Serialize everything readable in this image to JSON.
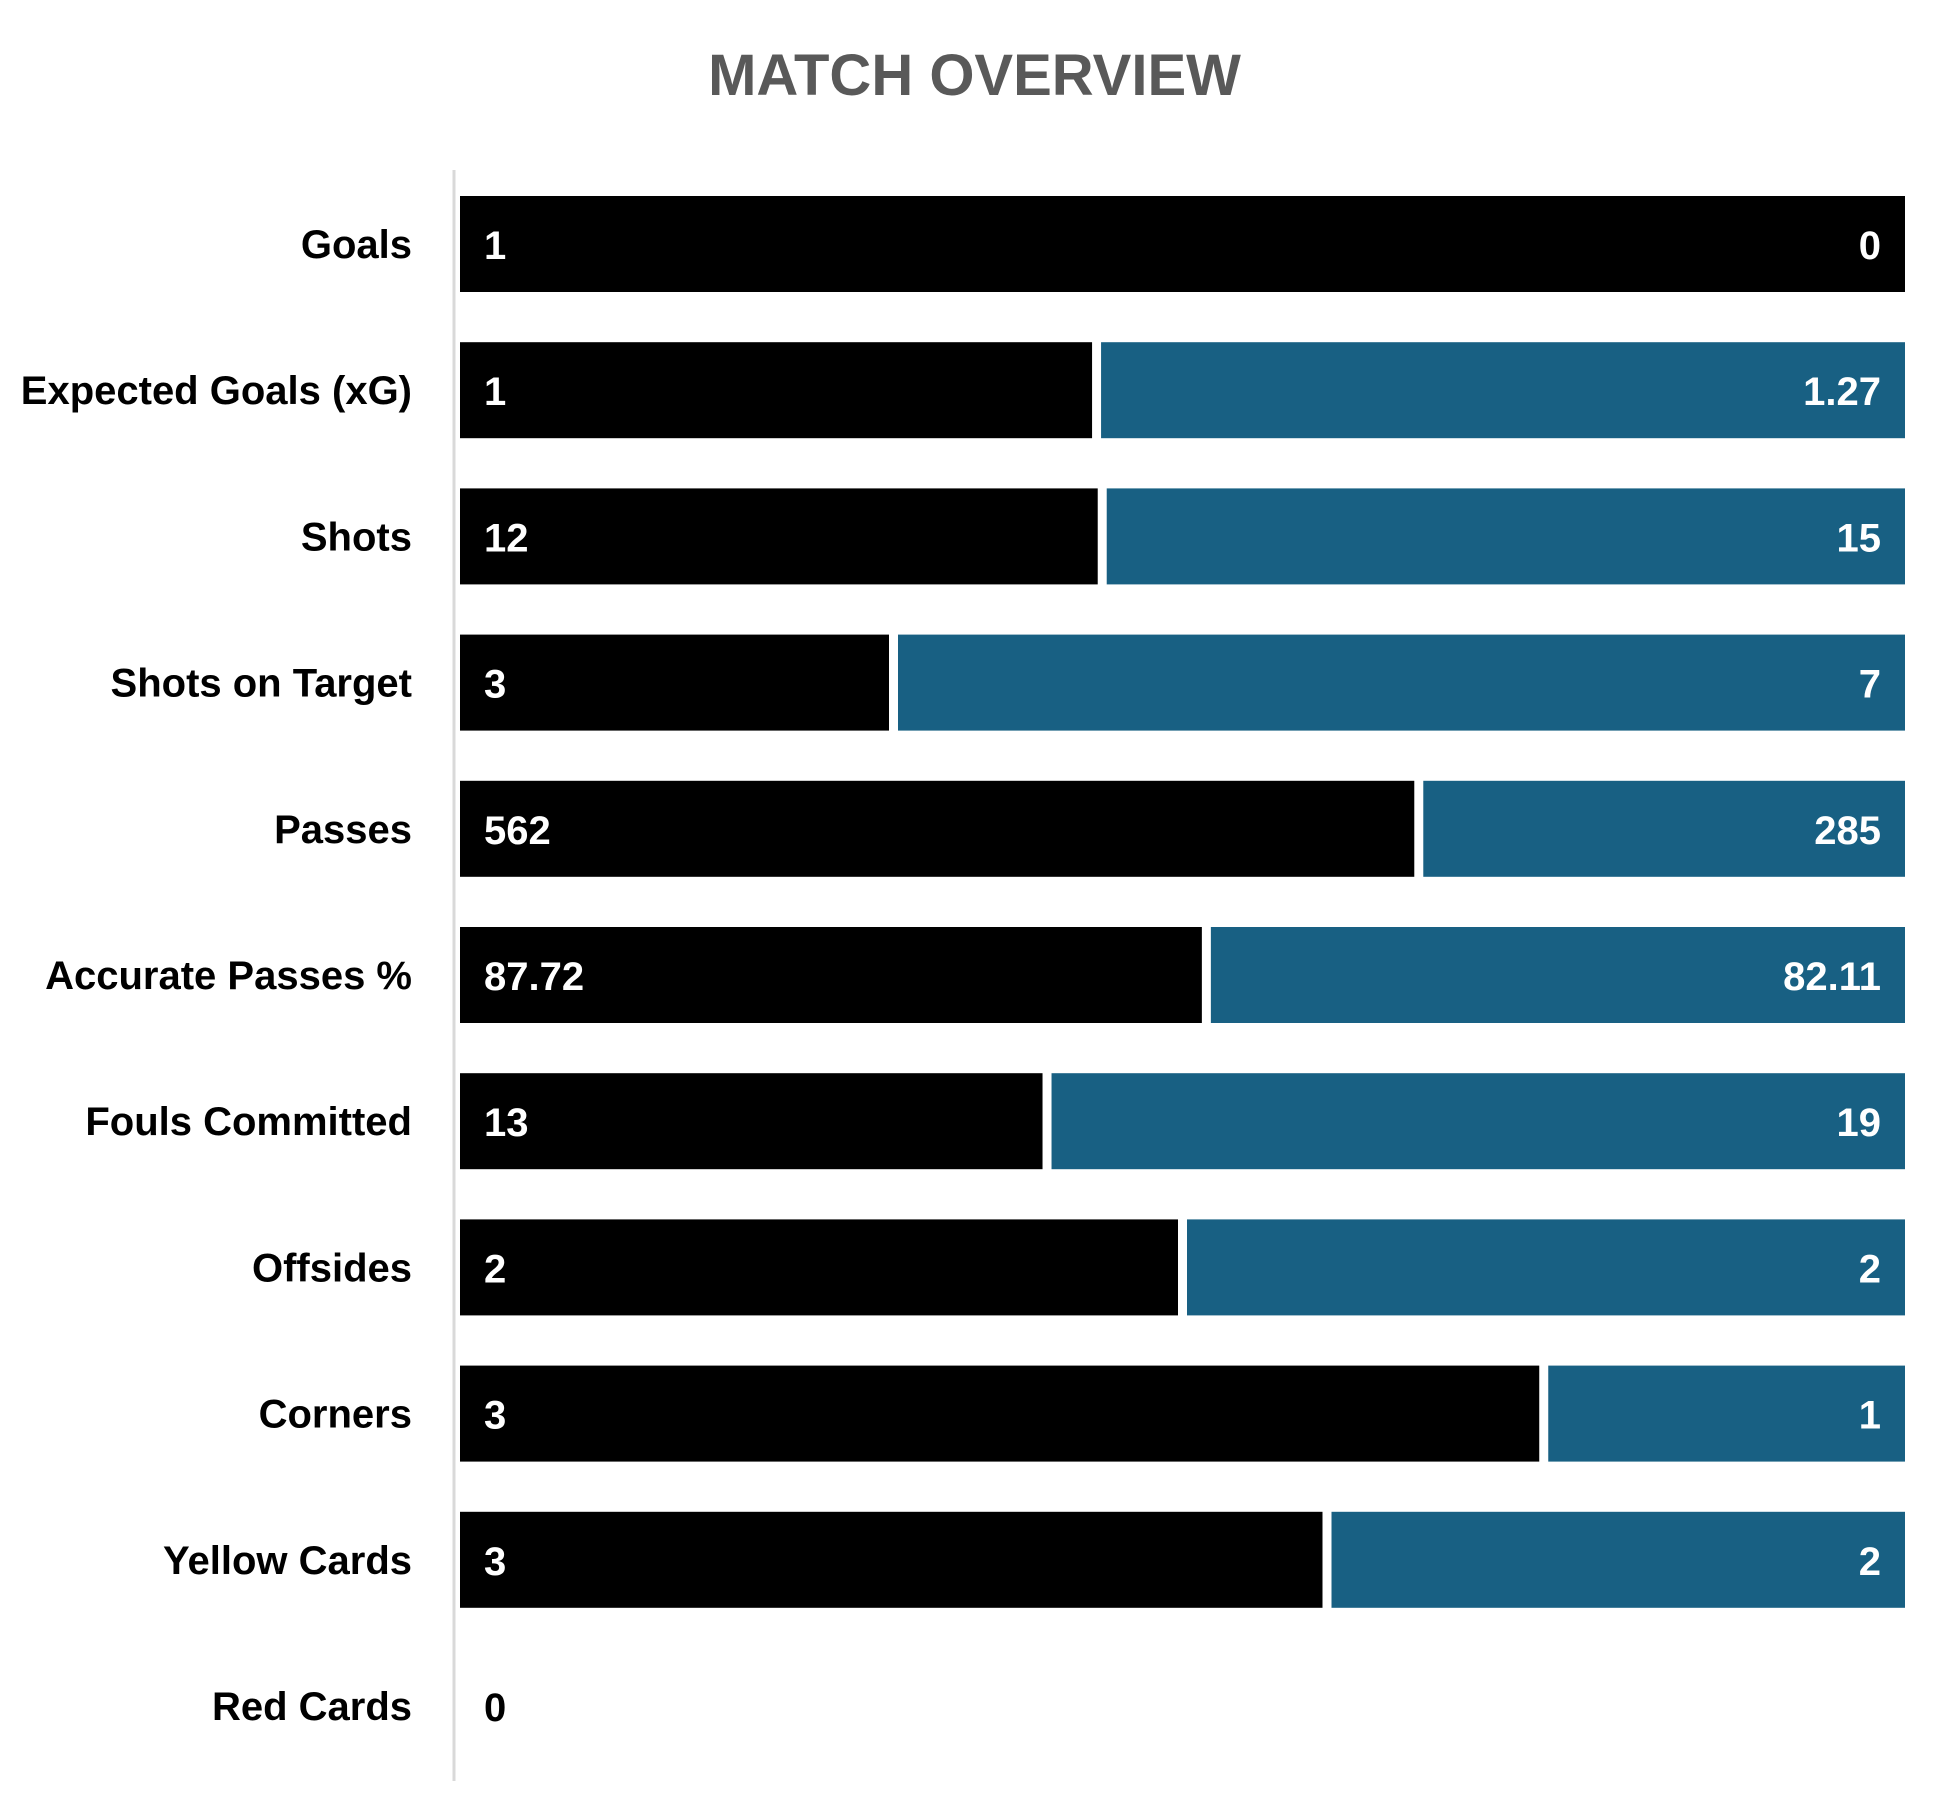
{
  "chart_data": {
    "type": "bar",
    "orientation": "horizontal",
    "stacking": "100% stacked",
    "title": "MATCH OVERVIEW",
    "categories": [
      "Goals",
      "Expected Goals (xG)",
      "Shots",
      "Shots on Target",
      "Passes",
      "Accurate Passes %",
      "Fouls Committed",
      "Offsides",
      "Corners",
      "Yellow Cards",
      "Red Cards"
    ],
    "series": [
      {
        "color": "#000000",
        "values": [
          1,
          1,
          12,
          3,
          562,
          87.72,
          13,
          2,
          3,
          3,
          0
        ],
        "labels": [
          "1",
          "1",
          "12",
          "3",
          "562",
          "87.72",
          "13",
          "2",
          "3",
          "3",
          "0"
        ]
      },
      {
        "color": "#186083",
        "values": [
          0,
          1.27,
          15,
          7,
          285,
          82.11,
          19,
          2,
          1,
          2,
          0
        ],
        "labels": [
          "0",
          "1.27",
          "15",
          "7",
          "285",
          "82.11",
          "19",
          "2",
          "1",
          "2",
          "0"
        ]
      }
    ],
    "legend": "none",
    "grid": false
  }
}
